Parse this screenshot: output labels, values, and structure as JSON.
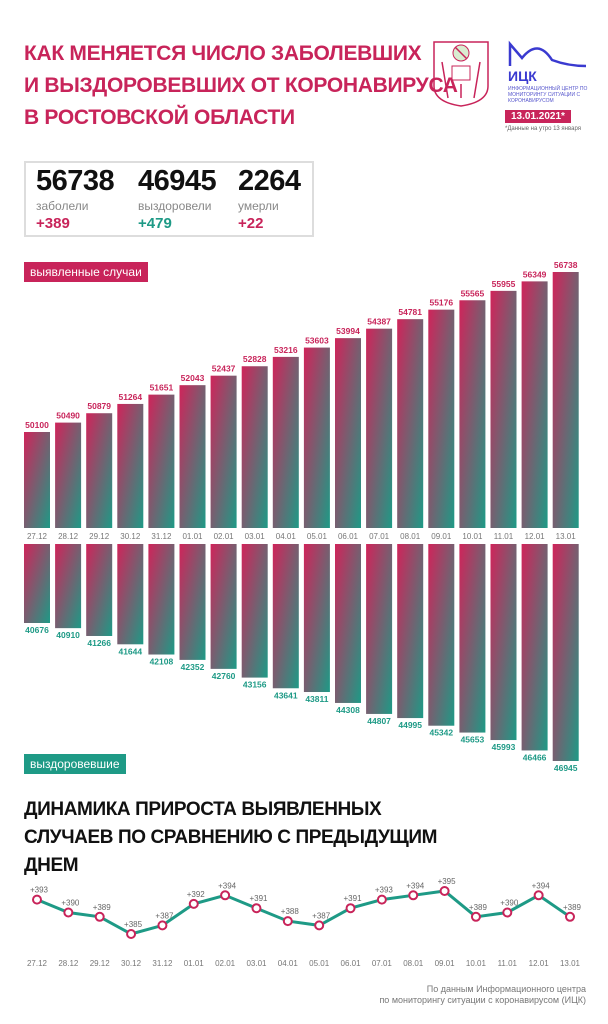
{
  "header": {
    "title_lines": [
      "КАК МЕНЯЕТСЯ ЧИСЛО ЗАБОЛЕВШИХ",
      "И ВЫЗДОРОВЕВШИХ ОТ КОРОНАВИРУСА",
      "В РОСТОВСКОЙ ОБЛАСТИ"
    ],
    "logo_name": "ИЦК",
    "logo_subtitle": "ИНФОРМАЦИОННЫЙ ЦЕНТР ПО МОНИТОРИНГУ СИТУАЦИИ С КОРОНАВИРУСОМ",
    "date": "13.01.2021*",
    "date_note": "*Данные на утро 13 января"
  },
  "stats": [
    {
      "value": "56738",
      "label": "заболели",
      "delta": "+389",
      "color": "#c8245a"
    },
    {
      "value": "46945",
      "label": "выздоровели",
      "delta": "+479",
      "color": "#1e9a86"
    },
    {
      "value": "2264",
      "label": "умерли",
      "delta": "+22",
      "color": "#c8245a"
    }
  ],
  "colors": {
    "accent": "#c8245a",
    "green": "#1e9a86"
  },
  "chart_data": [
    {
      "type": "bar",
      "title": "выявленные случаи",
      "categories": [
        "27.12",
        "28.12",
        "29.12",
        "30.12",
        "31.12",
        "01.01",
        "02.01",
        "03.01",
        "04.01",
        "05.01",
        "06.01",
        "07.01",
        "08.01",
        "09.01",
        "10.01",
        "11.01",
        "12.01",
        "13.01"
      ],
      "values": [
        50100,
        50490,
        50879,
        51264,
        51651,
        52043,
        52437,
        52828,
        53216,
        53603,
        53994,
        54387,
        54781,
        55176,
        55565,
        55955,
        56349,
        56738
      ]
    },
    {
      "type": "bar",
      "title": "выздоровевшие",
      "categories": [
        "27.12",
        "28.12",
        "29.12",
        "30.12",
        "31.12",
        "01.01",
        "02.01",
        "03.01",
        "04.01",
        "05.01",
        "06.01",
        "07.01",
        "08.01",
        "09.01",
        "10.01",
        "11.01",
        "12.01",
        "13.01"
      ],
      "values": [
        40676,
        40910,
        41266,
        41644,
        42108,
        42352,
        42760,
        43156,
        43641,
        43811,
        44308,
        44807,
        44995,
        45342,
        45653,
        45993,
        46466,
        46945
      ]
    },
    {
      "type": "line",
      "title": "ДИНАМИКА ПРИРОСТА ВЫЯВЛЕННЫХ СЛУЧАЕВ ПО СРАВНЕНИЮ С ПРЕДЫДУЩИМ ДНЕМ",
      "categories": [
        "27.12",
        "28.12",
        "29.12",
        "30.12",
        "31.12",
        "01.01",
        "02.01",
        "03.01",
        "04.01",
        "05.01",
        "06.01",
        "07.01",
        "08.01",
        "09.01",
        "10.01",
        "11.01",
        "12.01",
        "13.01"
      ],
      "values": [
        393,
        390,
        389,
        385,
        387,
        392,
        394,
        391,
        388,
        387,
        391,
        393,
        394,
        395,
        389,
        390,
        394,
        389
      ],
      "labels": [
        "+393",
        "+390",
        "+389",
        "+385",
        "+387",
        "+392",
        "+394",
        "+391",
        "+388",
        "+387",
        "+391",
        "+393",
        "+394",
        "+395",
        "+389",
        "+390",
        "+394",
        "+389"
      ]
    }
  ],
  "footer": {
    "source_lines": [
      "По данным Информационного центра",
      "по мониторингу ситуации с коронавирусом (ИЦК)"
    ]
  }
}
